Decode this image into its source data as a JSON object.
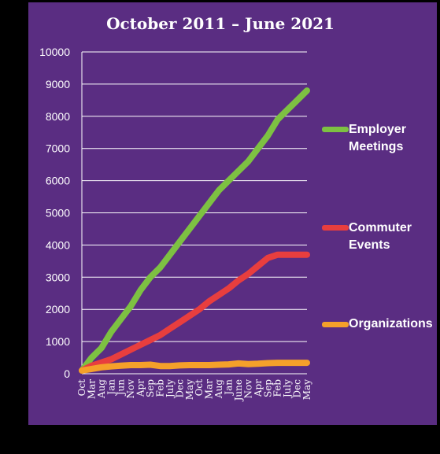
{
  "chart_data": {
    "type": "line",
    "title": "October 2011 – June 2021",
    "ylim": [
      0,
      10000
    ],
    "yticks": [
      "0",
      "1000",
      "2000",
      "3000",
      "4000",
      "5000",
      "6000",
      "7000",
      "8000",
      "9000",
      "10000"
    ],
    "x": [
      "Oct",
      "Mar",
      "Aug",
      "Jan",
      "Jun",
      "Nov",
      "Apr",
      "Sep",
      "Feb",
      "July",
      "Dec",
      "May",
      "Oct",
      "Mar",
      "Aug",
      "Jan",
      "June",
      "Nov",
      "Apr",
      "Sep",
      "Feb",
      "July",
      "Dec",
      "May"
    ],
    "grid": true,
    "legend_position": "right",
    "series": [
      {
        "name": "Employer Meetings",
        "color": "#7dc142",
        "values": [
          100,
          500,
          800,
          1300,
          1700,
          2100,
          2600,
          3000,
          3300,
          3700,
          4100,
          4500,
          4900,
          5300,
          5700,
          6000,
          6300,
          6600,
          7000,
          7400,
          7900,
          8200,
          8500,
          8800
        ]
      },
      {
        "name": "Commuter Events",
        "color": "#e83e3e",
        "values": [
          100,
          250,
          350,
          450,
          600,
          750,
          900,
          1050,
          1200,
          1400,
          1600,
          1800,
          2000,
          2250,
          2450,
          2650,
          2900,
          3100,
          3350,
          3600,
          3700,
          3700,
          3700,
          3700
        ]
      },
      {
        "name": "Organizations",
        "color": "#f5a02a",
        "values": [
          100,
          150,
          200,
          230,
          250,
          270,
          270,
          280,
          240,
          240,
          260,
          270,
          270,
          270,
          280,
          290,
          320,
          300,
          310,
          330,
          340,
          340,
          340,
          340
        ]
      }
    ]
  }
}
